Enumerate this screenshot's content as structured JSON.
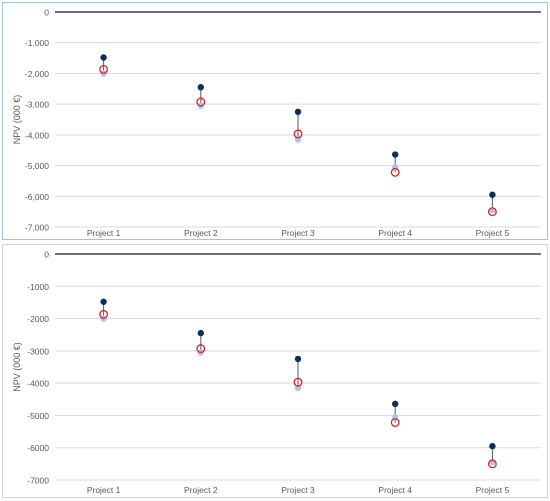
{
  "colors": {
    "high": "#0d2f5a",
    "low": "#a9c4e8",
    "marker": "#d9202a",
    "gridline": "#d9d9d9",
    "zero_line": "#404040",
    "whisker": "#595959"
  },
  "chart_data": [
    {
      "type": "scatter",
      "ylabel": "NPV (000 €)",
      "ylim": [
        -7000,
        0
      ],
      "yticks": [
        {
          "value": 0,
          "label": "0"
        },
        {
          "value": -1000,
          "label": "-1,000"
        },
        {
          "value": -2000,
          "label": "-2,000"
        },
        {
          "value": -3000,
          "label": "-3,000"
        },
        {
          "value": -4000,
          "label": "-4,000"
        },
        {
          "value": -5000,
          "label": "-5,000"
        },
        {
          "value": -6000,
          "label": "-6,000"
        },
        {
          "value": -7000,
          "label": "-7,000"
        }
      ],
      "grid": true,
      "categories": [
        "Project 1",
        "Project 2",
        "Project 3",
        "Project 4",
        "Project 5"
      ],
      "high": [
        -1480,
        -2450,
        -3250,
        -4640,
        -5950
      ],
      "mid": [
        -1870,
        -2930,
        -3970,
        -5220,
        -6500
      ],
      "low": [
        -2000,
        -3050,
        -4150,
        -5060,
        -6450
      ]
    },
    {
      "type": "scatter",
      "ylabel": "NPV (000 €)",
      "ylim": [
        -7000,
        0
      ],
      "yticks": [
        {
          "value": 0,
          "label": "0"
        },
        {
          "value": -1000,
          "label": "-1000"
        },
        {
          "value": -2000,
          "label": "-2000"
        },
        {
          "value": -3000,
          "label": "-3000"
        },
        {
          "value": -4000,
          "label": "-4000"
        },
        {
          "value": -5000,
          "label": "-5000"
        },
        {
          "value": -6000,
          "label": "-6000"
        },
        {
          "value": -7000,
          "label": "-7000"
        }
      ],
      "grid": true,
      "categories": [
        "Project 1",
        "Project 2",
        "Project 3",
        "Project 4",
        "Project 5"
      ],
      "high": [
        -1480,
        -2450,
        -3250,
        -4640,
        -5950
      ],
      "mid": [
        -1870,
        -2930,
        -3970,
        -5220,
        -6500
      ],
      "low": [
        -2000,
        -3050,
        -4150,
        -5060,
        -6450
      ]
    }
  ]
}
